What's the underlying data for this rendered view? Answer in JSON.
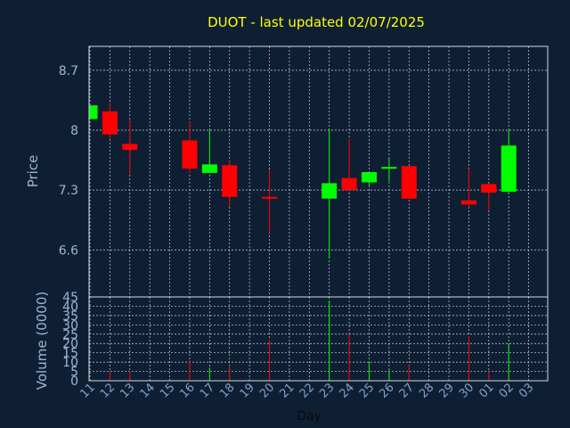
{
  "chart_data": [
    {
      "type": "candlestick",
      "title": "DUOT - last updated 02/07/2025",
      "ylabel": "Price",
      "ylim": [
        6.05,
        8.98
      ],
      "yticks": [
        6.6,
        7.3,
        8,
        8.7
      ],
      "ytick_labels": [
        "6.6",
        "7.3",
        "8",
        "8.7"
      ],
      "grid": true,
      "up_color": "#00ff00",
      "down_color": "#ff0000",
      "dates": [
        "11",
        "12",
        "13",
        "14",
        "15",
        "16",
        "17",
        "18",
        "19",
        "20",
        "21",
        "22",
        "23",
        "24",
        "25",
        "26",
        "27",
        "28",
        "29",
        "30",
        "01",
        "02",
        "03"
      ],
      "candles": [
        {
          "date": "11",
          "open": 8.13,
          "close": 8.29,
          "high": 8.29,
          "low": 8.13
        },
        {
          "date": "12",
          "open": 8.22,
          "close": 7.95,
          "high": 8.33,
          "low": 7.9
        },
        {
          "date": "13",
          "open": 7.84,
          "close": 7.77,
          "high": 8.13,
          "low": 7.48
        },
        {
          "date": "16",
          "open": 7.88,
          "close": 7.55,
          "high": 8.1,
          "low": 7.5
        },
        {
          "date": "17",
          "open": 7.5,
          "close": 7.6,
          "high": 8.0,
          "low": 7.5
        },
        {
          "date": "18",
          "open": 7.59,
          "close": 7.22,
          "high": 7.65,
          "low": 7.1
        },
        {
          "date": "20",
          "open": 7.22,
          "close": 7.2,
          "high": 7.54,
          "low": 6.8
        },
        {
          "date": "23",
          "open": 7.2,
          "close": 7.38,
          "high": 8.0,
          "low": 6.5
        },
        {
          "date": "24",
          "open": 7.44,
          "close": 7.3,
          "high": 7.9,
          "low": 7.3
        },
        {
          "date": "25",
          "open": 7.39,
          "close": 7.51,
          "high": 7.51,
          "low": 7.35
        },
        {
          "date": "26",
          "open": 7.55,
          "close": 7.57,
          "high": 7.67,
          "low": 7.4
        },
        {
          "date": "27",
          "open": 7.58,
          "close": 7.2,
          "high": 7.58,
          "low": 7.2
        },
        {
          "date": "30",
          "open": 7.18,
          "close": 7.13,
          "high": 7.55,
          "low": 7.1
        },
        {
          "date": "01",
          "open": 7.37,
          "close": 7.27,
          "high": 7.37,
          "low": 7.06
        },
        {
          "date": "02",
          "open": 7.28,
          "close": 7.82,
          "high": 8.0,
          "low": 7.25
        }
      ]
    },
    {
      "type": "bar",
      "ylabel": "Volume (0000)",
      "xlabel": "Day",
      "ylim": [
        0,
        45
      ],
      "yticks": [
        0,
        5,
        10,
        15,
        20,
        25,
        30,
        35,
        40,
        45
      ],
      "ytick_labels": [
        "0",
        "5",
        "10",
        "15",
        "20",
        "25",
        "30",
        "35",
        "40",
        "45"
      ],
      "categories": [
        "11",
        "12",
        "13",
        "14",
        "15",
        "16",
        "17",
        "18",
        "19",
        "20",
        "21",
        "22",
        "23",
        "24",
        "25",
        "26",
        "27",
        "28",
        "29",
        "30",
        "01",
        "02",
        "03"
      ],
      "values": [
        0.5,
        5,
        5.5,
        0,
        0,
        11,
        7,
        8,
        0,
        22,
        0,
        0,
        43,
        25,
        10,
        5.5,
        8.5,
        0,
        0,
        24,
        5,
        20,
        0
      ],
      "colors": [
        "up",
        "down",
        "down",
        "none",
        "none",
        "down",
        "up",
        "down",
        "none",
        "down",
        "none",
        "none",
        "up",
        "down",
        "up",
        "up",
        "down",
        "none",
        "none",
        "down",
        "down",
        "up",
        "none"
      ]
    }
  ]
}
